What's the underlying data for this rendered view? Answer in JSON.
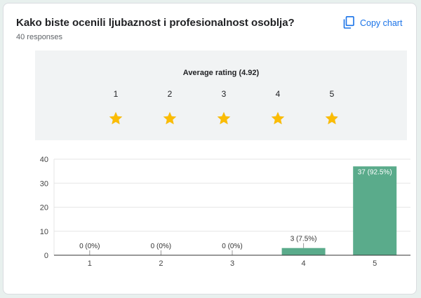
{
  "header": {
    "title": "Kako biste ocenili ljubaznost i profesionalnost osoblja?",
    "responses": "40 responses",
    "copy_label": "Copy chart"
  },
  "rating": {
    "label": "Average rating (4.92)",
    "scale": [
      "1",
      "2",
      "3",
      "4",
      "5"
    ],
    "average": 4.92,
    "star_fill_color": "#fbbc04",
    "star_empty_color": "#c4c4c4"
  },
  "chart_data": {
    "type": "bar",
    "categories": [
      "1",
      "2",
      "3",
      "4",
      "5"
    ],
    "values": [
      0,
      0,
      0,
      3,
      37
    ],
    "data_labels": [
      "0 (0%)",
      "0 (0%)",
      "0 (0%)",
      "3 (7.5%)",
      "37 (92.5%)"
    ],
    "ylim": [
      0,
      40
    ],
    "yticks": [
      "0",
      "10",
      "20",
      "30",
      "40"
    ],
    "grid": true,
    "bar_color": "#5aab8b",
    "xlabel": "",
    "ylabel": ""
  }
}
